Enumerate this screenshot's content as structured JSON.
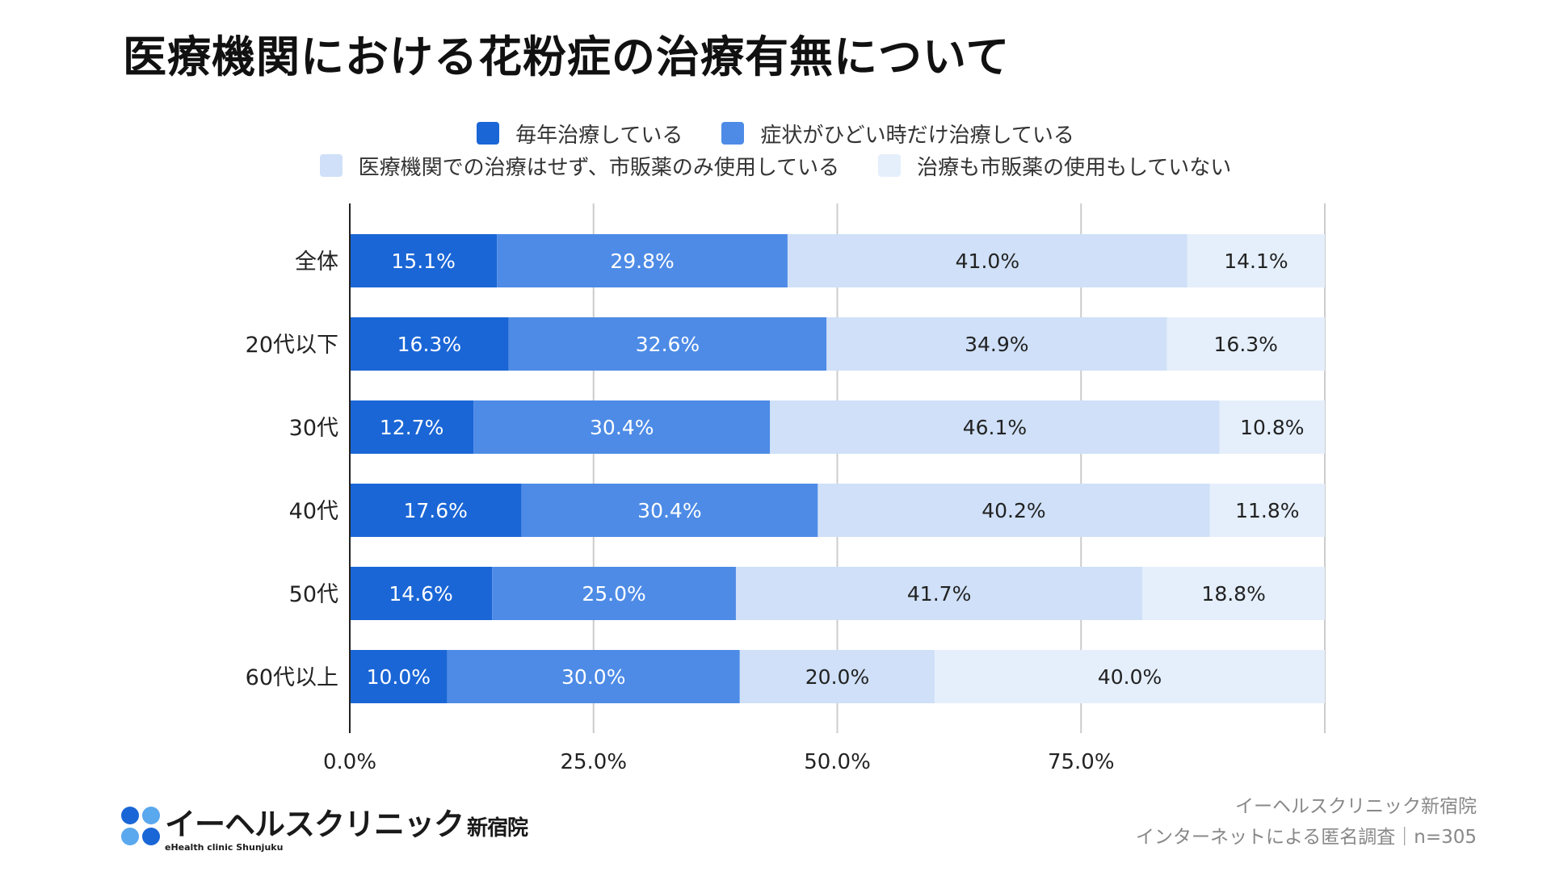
{
  "title": "医療機関における花粉症の治療有無について",
  "legend": [
    {
      "label": "毎年治療している",
      "color": "#1a66d6"
    },
    {
      "label": "症状がひどい時だけ治療している",
      "color": "#4d8be6"
    },
    {
      "label": "医療機関での治療はせず、市販薬のみ使用している",
      "color": "#cfe0f8"
    },
    {
      "label": "治療も市販薬の使用もしていない",
      "color": "#e5effc"
    }
  ],
  "chart_data": {
    "type": "bar",
    "orientation": "horizontal",
    "stacked": true,
    "categories": [
      "全体",
      "20代以下",
      "30代",
      "40代",
      "50代",
      "60代以上"
    ],
    "series": [
      {
        "name": "毎年治療している",
        "values": [
          15.1,
          16.3,
          12.7,
          17.6,
          14.6,
          10.0
        ],
        "labels": [
          "15.1%",
          "16.3%",
          "12.7%",
          "17.6%",
          "14.6%",
          "10.0%"
        ],
        "color": "#1a66d6",
        "text_color": "#ffffff"
      },
      {
        "name": "症状がひどい時だけ治療している",
        "values": [
          29.8,
          32.6,
          30.4,
          30.4,
          25.0,
          30.0
        ],
        "labels": [
          "29.8%",
          "32.6%",
          "30.4%",
          "30.4%",
          "25.0%",
          "30.0%"
        ],
        "color": "#4d8be6",
        "text_color": "#ffffff"
      },
      {
        "name": "医療機関での治療はせず、市販薬のみ使用している",
        "values": [
          41.0,
          34.9,
          46.1,
          40.2,
          41.7,
          20.0
        ],
        "labels": [
          "41.0%",
          "34.9%",
          "46.1%",
          "40.2%",
          "41.7%",
          "20.0%"
        ],
        "color": "#cfe0f8",
        "text_color": "#222222"
      },
      {
        "name": "治療も市販薬の使用もしていない",
        "values": [
          14.1,
          16.3,
          10.8,
          11.8,
          18.8,
          40.0
        ],
        "labels": [
          "14.1%",
          "16.3%",
          "10.8%",
          "11.8%",
          "18.8%",
          "40.0%"
        ],
        "color": "#e5effc",
        "text_color": "#222222"
      }
    ],
    "xlim": [
      0,
      100
    ],
    "xticks": [
      0,
      25,
      50,
      75
    ],
    "xtick_labels": [
      "0.0%",
      "25.0%",
      "50.0%",
      "75.0%"
    ],
    "grid": true,
    "legend_position": "top"
  },
  "logo": {
    "main": "イーヘルスクリニック",
    "branch": "新宿院",
    "sub": "eHealth clinic Shunjuku",
    "dot_colors": [
      "#1a66d6",
      "#5aa8ee",
      "#5aa8ee",
      "#1a66d6"
    ]
  },
  "footer": {
    "line1": "イーヘルスクリニック新宿院",
    "line2": "インターネットによる匿名調査｜n=305"
  }
}
